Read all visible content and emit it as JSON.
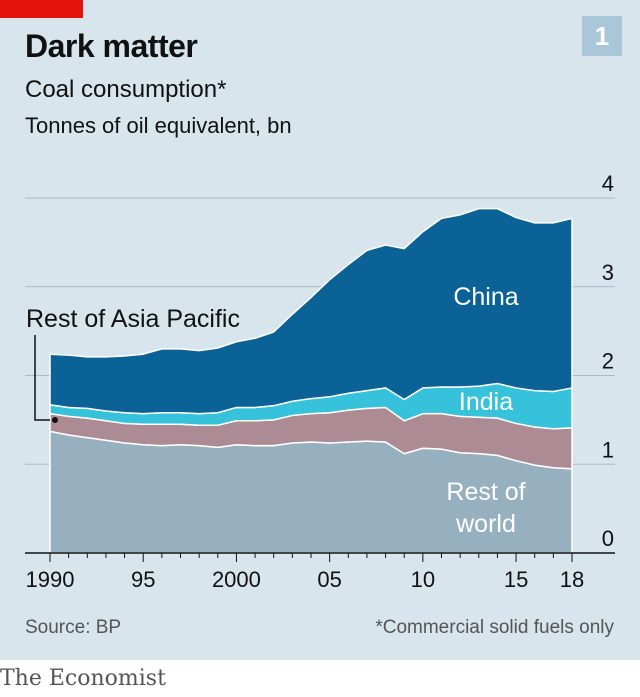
{
  "header": {
    "title": "Dark matter",
    "subtitle": "Coal consumption*",
    "units": "Tonnes of oil equivalent, bn",
    "chart_number": "1"
  },
  "footer": {
    "source": "Source: BP",
    "footnote": "*Commercial solid fuels only",
    "publisher": "The Economist"
  },
  "colors": {
    "background": "#d8e5ec",
    "rest_of_world": "#97b0bf",
    "rest_of_asia_pacific": "#ad8b95",
    "india": "#36c2da",
    "china": "#0a6296",
    "accent": "#e3120b"
  },
  "chart_data": {
    "type": "area",
    "stacked": true,
    "x": [
      1990,
      1991,
      1992,
      1993,
      1994,
      1995,
      1996,
      1997,
      1998,
      1999,
      2000,
      2001,
      2002,
      2003,
      2004,
      2005,
      2006,
      2007,
      2008,
      2009,
      2010,
      2011,
      2012,
      2013,
      2014,
      2015,
      2016,
      2017,
      2018
    ],
    "x_tick_labels": [
      "1990",
      "95",
      "2000",
      "05",
      "10",
      "15",
      "18"
    ],
    "x_tick_values": [
      1990,
      1995,
      2000,
      2005,
      2010,
      2015,
      2018
    ],
    "y_ticks": [
      0,
      1,
      2,
      3,
      4
    ],
    "ylim": [
      0,
      4
    ],
    "grid": true,
    "series": [
      {
        "name": "Rest of world",
        "values": [
          1.37,
          1.33,
          1.3,
          1.27,
          1.24,
          1.22,
          1.21,
          1.22,
          1.21,
          1.19,
          1.22,
          1.21,
          1.21,
          1.24,
          1.25,
          1.24,
          1.25,
          1.26,
          1.25,
          1.12,
          1.18,
          1.17,
          1.13,
          1.12,
          1.1,
          1.04,
          0.99,
          0.96,
          0.95
        ]
      },
      {
        "name": "Rest of Asia Pacific",
        "values": [
          0.2,
          0.21,
          0.22,
          0.22,
          0.22,
          0.23,
          0.24,
          0.23,
          0.23,
          0.25,
          0.27,
          0.28,
          0.29,
          0.31,
          0.32,
          0.34,
          0.36,
          0.37,
          0.39,
          0.37,
          0.39,
          0.4,
          0.41,
          0.41,
          0.42,
          0.42,
          0.43,
          0.44,
          0.46
        ]
      },
      {
        "name": "India",
        "values": [
          0.1,
          0.1,
          0.11,
          0.11,
          0.12,
          0.12,
          0.13,
          0.13,
          0.13,
          0.14,
          0.15,
          0.15,
          0.16,
          0.16,
          0.17,
          0.18,
          0.19,
          0.2,
          0.22,
          0.24,
          0.29,
          0.3,
          0.33,
          0.35,
          0.39,
          0.4,
          0.41,
          0.42,
          0.45
        ]
      },
      {
        "name": "China",
        "values": [
          0.57,
          0.59,
          0.58,
          0.61,
          0.64,
          0.67,
          0.72,
          0.72,
          0.71,
          0.73,
          0.74,
          0.78,
          0.83,
          0.98,
          1.14,
          1.32,
          1.45,
          1.58,
          1.61,
          1.7,
          1.76,
          1.9,
          1.94,
          2.0,
          1.97,
          1.92,
          1.89,
          1.9,
          1.91
        ]
      }
    ],
    "labels": {
      "china": "China",
      "india": "India",
      "rest_of_world_line1": "Rest of",
      "rest_of_world_line2": "world",
      "rest_of_asia_pacific": "Rest of Asia Pacific"
    }
  }
}
